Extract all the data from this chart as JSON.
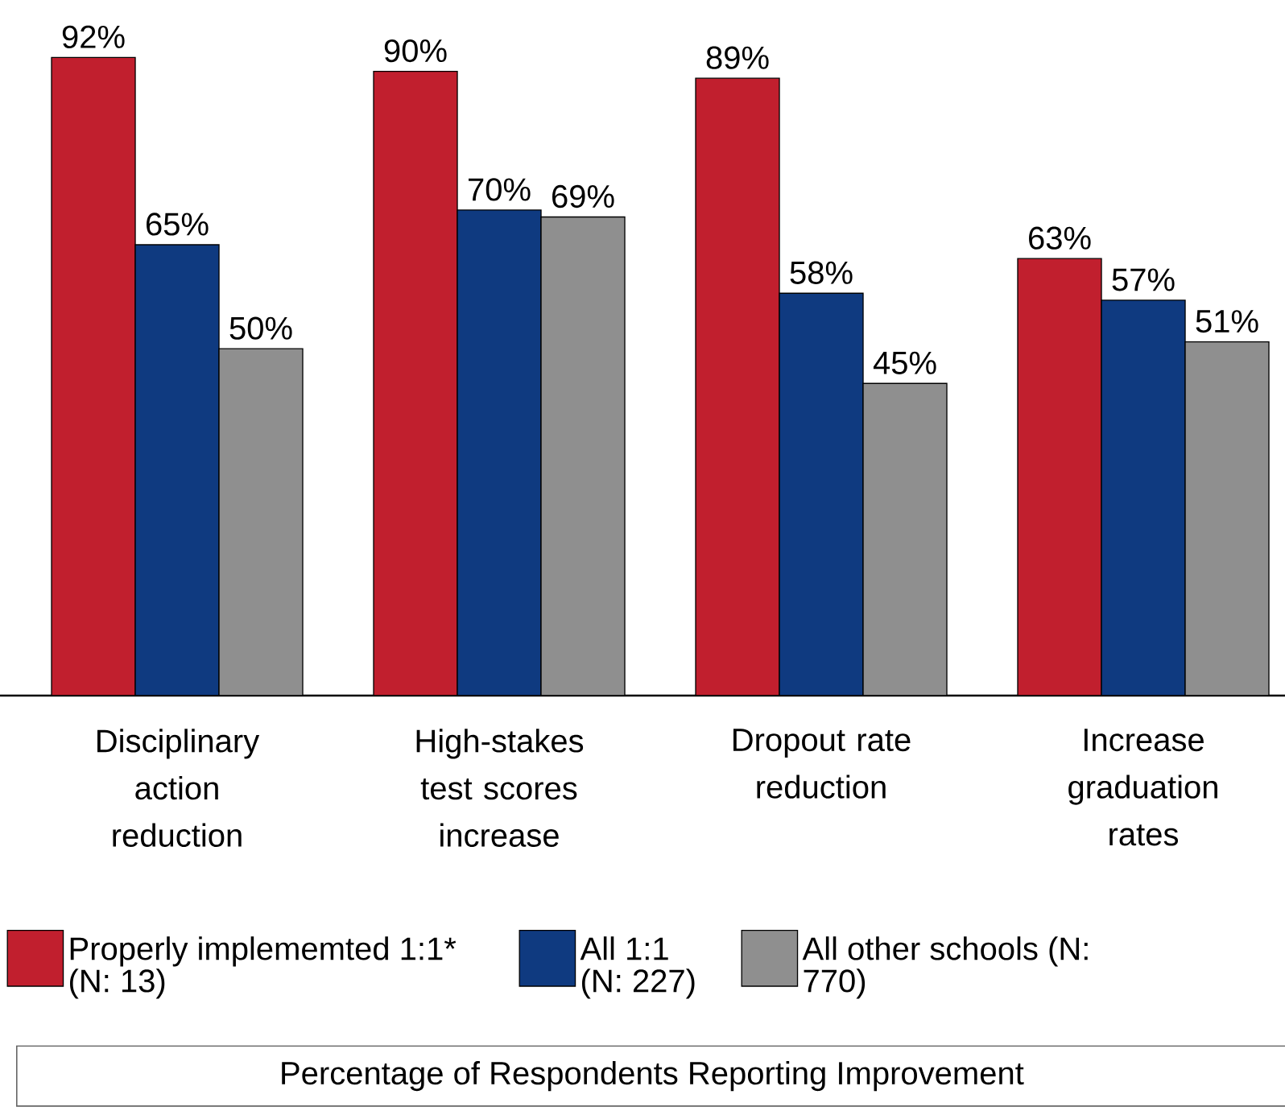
{
  "chart_data": {
    "type": "bar",
    "title": "Percentage of Respondents Reporting Improvement",
    "categories": [
      "Disciplinary action reduction",
      "High-stakes test scores increase",
      "Dropout rate reduction",
      "Increase graduation rates"
    ],
    "series": [
      {
        "name": "Properly implememted 1:1* (N: 13)",
        "color": "#c11f2e",
        "values": [
          92,
          90,
          89,
          63
        ],
        "value_labels": [
          "92%",
          "90%",
          "89%",
          "63%"
        ]
      },
      {
        "name": "All 1:1 (N: 227)",
        "color": "#0f3a80",
        "values": [
          65,
          70,
          58,
          57
        ],
        "value_labels": [
          "65%",
          "70%",
          "58%",
          "57%"
        ]
      },
      {
        "name": "All other schools (N: 770)",
        "color": "#8f8f8f",
        "values": [
          50,
          69,
          45,
          51
        ],
        "value_labels": [
          "50%",
          "69%",
          "45%",
          "51%"
        ]
      }
    ],
    "legend": "bottom"
  }
}
